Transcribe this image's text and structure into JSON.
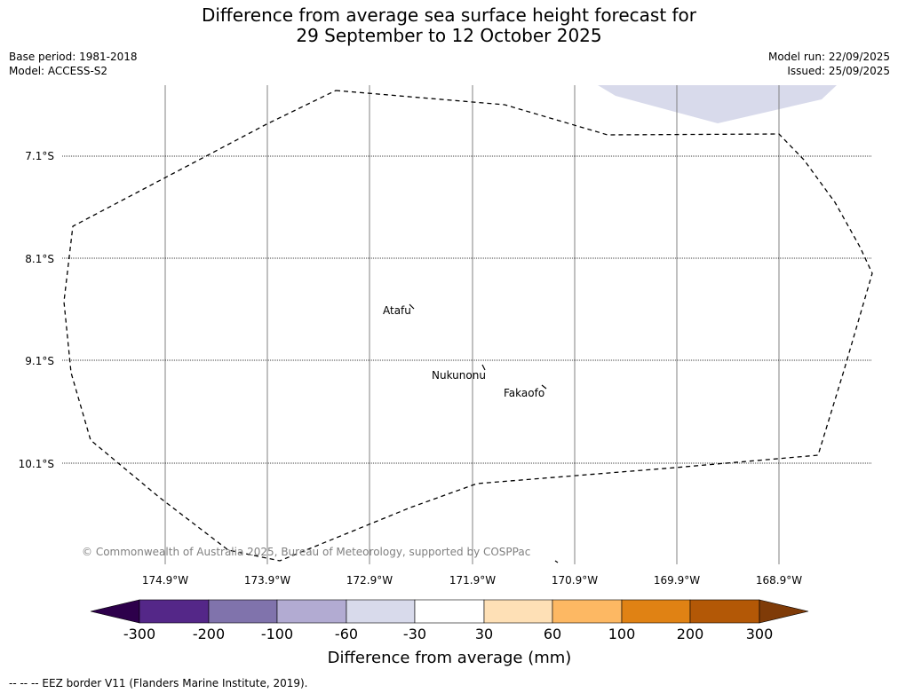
{
  "header": {
    "title_line1": "Difference from average sea surface height forecast for",
    "title_line2": "29 September to 12 October 2025",
    "base_period": "Base period: 1981-2018",
    "model": "Model: ACCESS-S2",
    "model_run": "Model run: 22/09/2025",
    "issued": "Issued: 25/09/2025"
  },
  "map": {
    "latitude_labels": [
      "7.1°S",
      "8.1°S",
      "9.1°S",
      "10.1°S"
    ],
    "longitude_labels": [
      "174.9°W",
      "173.9°W",
      "172.9°W",
      "171.9°W",
      "170.9°W",
      "169.9°W",
      "168.9°W"
    ],
    "places": [
      "Atafu",
      "Nukunonu",
      "Fakaofo"
    ],
    "copyright": "© Commonwealth of Australia 2025, Bureau of Meteorology, supported by COSPPac"
  },
  "colorbar": {
    "ticks": [
      "-300",
      "-200",
      "-100",
      "-60",
      "-30",
      "30",
      "60",
      "100",
      "200",
      "300"
    ],
    "label": "Difference from average (mm)",
    "colors": [
      "#2d004b",
      "#542788",
      "#8073ac",
      "#b2abd2",
      "#d8daeb",
      "#ffffff",
      "#fee0b6",
      "#fdb863",
      "#e08214",
      "#b35806",
      "#7f3b08"
    ]
  },
  "footer": {
    "legend": "--  --  -- EEZ border V11 (Flanders Marine Institute, 2019)."
  }
}
